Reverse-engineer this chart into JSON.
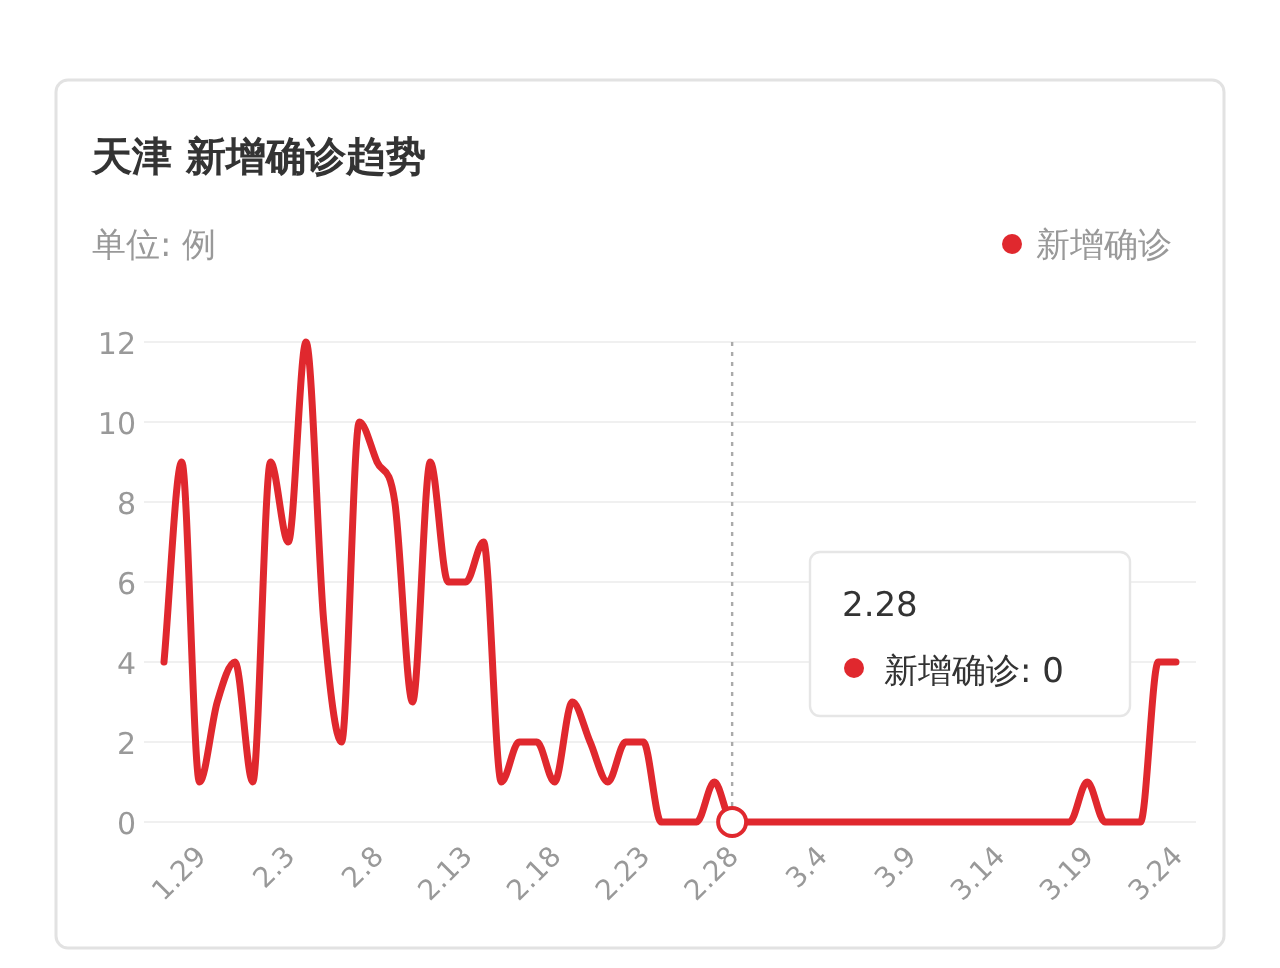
{
  "chart_data": {
    "type": "line",
    "title": "天津 新增确诊趋势",
    "subtitle": "单位: 例",
    "categories": [
      null,
      null,
      "1.29",
      null,
      null,
      null,
      null,
      "2.3",
      null,
      null,
      null,
      null,
      "2.8",
      null,
      null,
      null,
      null,
      "2.13",
      null,
      null,
      null,
      null,
      "2.18",
      null,
      null,
      null,
      null,
      "2.23",
      null,
      null,
      null,
      null,
      "2.28",
      null,
      null,
      null,
      null,
      "3.4",
      null,
      null,
      null,
      null,
      "3.9",
      null,
      null,
      null,
      null,
      "3.14",
      null,
      null,
      null,
      null,
      "3.19",
      null,
      null,
      null,
      null,
      "3.24"
    ],
    "series": [
      {
        "name": "新增确诊",
        "color": "#e0282e",
        "values": [
          4,
          9,
          1,
          3,
          4,
          1,
          9,
          7,
          12,
          5,
          2,
          10,
          9,
          8,
          3,
          9,
          6,
          6,
          7,
          1,
          2,
          2,
          1,
          3,
          2,
          1,
          2,
          2,
          0,
          0,
          0,
          1,
          0,
          0,
          0,
          0,
          0,
          0,
          0,
          0,
          0,
          0,
          0,
          0,
          0,
          0,
          0,
          0,
          0,
          0,
          0,
          0,
          1,
          0,
          0,
          0,
          4,
          4
        ]
      }
    ],
    "ylim": [
      0,
      12
    ],
    "yticks": [
      0,
      2,
      4,
      6,
      8,
      10,
      12
    ],
    "grid": "y",
    "legend": "top right",
    "marker": "none",
    "line_style": "solid",
    "ref_lines": [
      {
        "axis": "x",
        "value": "2.28",
        "color": "#aaaaaa",
        "line_style": "dotted"
      }
    ],
    "annotations": [
      "2.28\n新增确诊: 0"
    ]
  }
}
